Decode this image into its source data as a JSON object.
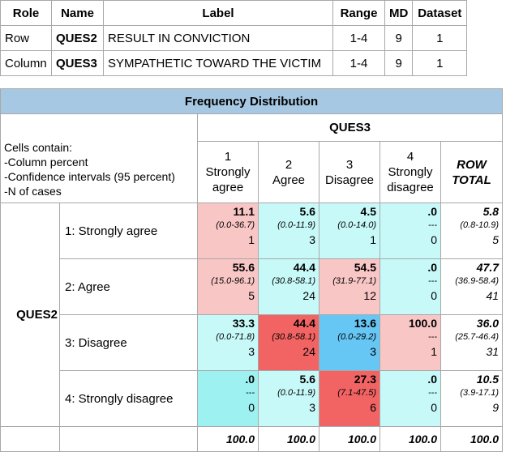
{
  "variables": {
    "headers": [
      "Role",
      "Name",
      "Label",
      "Range",
      "MD",
      "Dataset"
    ],
    "rows": [
      {
        "role": "Row",
        "name": "QUES2",
        "label": "RESULT IN CONVICTION",
        "range": "1-4",
        "md": "9",
        "dataset": "1"
      },
      {
        "role": "Column",
        "name": "QUES3",
        "label": "SYMPATHETIC TOWARD THE VICTIM",
        "range": "1-4",
        "md": "9",
        "dataset": "1"
      }
    ]
  },
  "freq": {
    "title": "Frequency Distribution",
    "legend": [
      "Cells contain:",
      "-Column percent",
      "-Confidence intervals (95 percent)",
      "-N of cases"
    ],
    "col_var": "QUES3",
    "row_var": "QUES2",
    "col_headers": [
      [
        "1",
        "Strongly",
        "agree"
      ],
      [
        "2",
        "Agree"
      ],
      [
        "3",
        "Disagree"
      ],
      [
        "4",
        "Strongly",
        "disagree"
      ]
    ],
    "row_total_header": [
      "ROW",
      "TOTAL"
    ],
    "row_labels": [
      "1: Strongly agree",
      "2: Agree",
      "3: Disagree",
      "4: Strongly disagree"
    ],
    "cells": [
      [
        {
          "p": "11.1",
          "ci": "(0.0-36.7)",
          "n": "1"
        },
        {
          "p": "5.6",
          "ci": "(0.0-11.9)",
          "n": "3"
        },
        {
          "p": "4.5",
          "ci": "(0.0-14.0)",
          "n": "1"
        },
        {
          "p": ".0",
          "ci": "---",
          "n": "0"
        }
      ],
      [
        {
          "p": "55.6",
          "ci": "(15.0-96.1)",
          "n": "5"
        },
        {
          "p": "44.4",
          "ci": "(30.8-58.1)",
          "n": "24"
        },
        {
          "p": "54.5",
          "ci": "(31.9-77.1)",
          "n": "12"
        },
        {
          "p": ".0",
          "ci": "---",
          "n": "0"
        }
      ],
      [
        {
          "p": "33.3",
          "ci": "(0.0-71.8)",
          "n": "3"
        },
        {
          "p": "44.4",
          "ci": "(30.8-58.1)",
          "n": "24"
        },
        {
          "p": "13.6",
          "ci": "(0.0-29.2)",
          "n": "3"
        },
        {
          "p": "100.0",
          "ci": "---",
          "n": "1"
        }
      ],
      [
        {
          "p": ".0",
          "ci": "---",
          "n": "0"
        },
        {
          "p": "5.6",
          "ci": "(0.0-11.9)",
          "n": "3"
        },
        {
          "p": "27.3",
          "ci": "(7.1-47.5)",
          "n": "6"
        },
        {
          "p": ".0",
          "ci": "---",
          "n": "0"
        }
      ]
    ],
    "cell_colors": [
      [
        "#f9c6c6",
        "#c8f9f9",
        "#c8f9f9",
        "#c8f9f9"
      ],
      [
        "#f9c6c6",
        "#c8f9f9",
        "#f9c6c6",
        "#c8f9f9"
      ],
      [
        "#c8f9f9",
        "#f26363",
        "#66c6f4",
        "#f9c6c6"
      ],
      [
        "#9ef1f1",
        "#c8f9f9",
        "#f26363",
        "#c8f9f9"
      ]
    ],
    "row_totals": [
      {
        "p": "5.8",
        "ci": "(0.8-10.9)",
        "n": "5"
      },
      {
        "p": "47.7",
        "ci": "(36.9-58.4)",
        "n": "41"
      },
      {
        "p": "36.0",
        "ci": "(25.7-46.4)",
        "n": "31"
      },
      {
        "p": "10.5",
        "ci": "(3.9-17.1)",
        "n": "9"
      }
    ],
    "col_totals": [
      "100.0",
      "100.0",
      "100.0",
      "100.0",
      "100.0"
    ]
  }
}
